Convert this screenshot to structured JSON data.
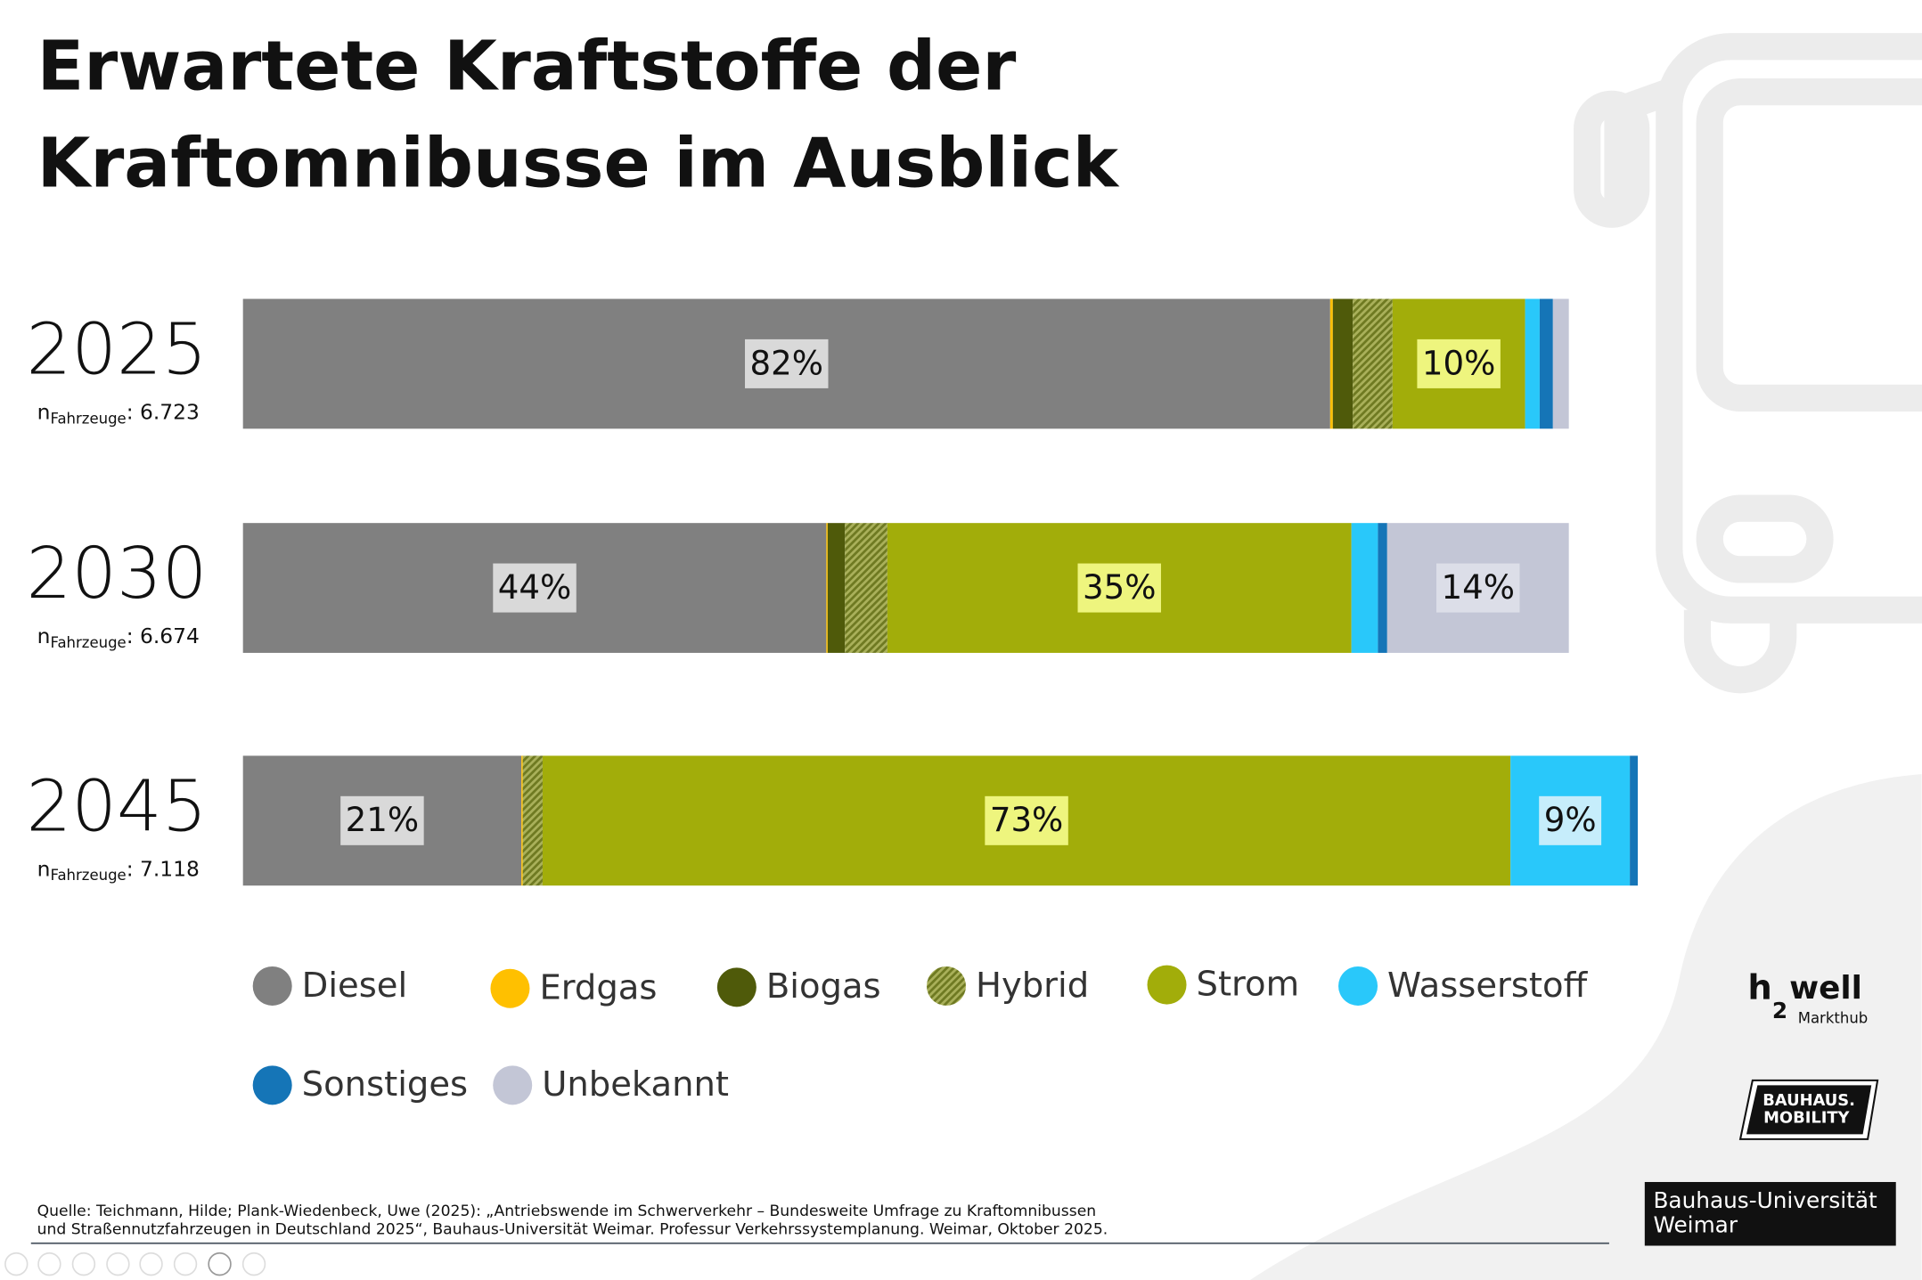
{
  "chart_data": {
    "type": "stacked_hbar",
    "title": [
      "Erwartete Kraftstoffe der",
      "Kraftomnibusse im Ausblick"
    ],
    "categories": [
      "2025",
      "2030",
      "2045"
    ],
    "sample_sizes": [
      {
        "symbol": "n",
        "subscript": "Fahrzeuge",
        "text": ": 6.723"
      },
      {
        "symbol": "n",
        "subscript": "Fahrzeuge",
        "text": ": 6.674"
      },
      {
        "symbol": "n",
        "subscript": "Fahrzeuge",
        "text": ": 7.118"
      }
    ],
    "xlim": [
      0,
      106
    ],
    "series": [
      {
        "name": "Diesel",
        "color": "#808080",
        "values": [
          82,
          44,
          21
        ],
        "value_labels": [
          "82%",
          "44%",
          "21%"
        ],
        "label_bg": "#d9d9d9"
      },
      {
        "name": "Erdgas",
        "color": "#ffc000",
        "values": [
          0.2,
          0.1,
          0.1
        ]
      },
      {
        "name": "Biogas",
        "color": "#4f5a0a",
        "values": [
          1.5,
          1.3,
          0
        ]
      },
      {
        "name": "Hybrid",
        "color": "#8c9640",
        "pattern": "hatch",
        "values": [
          3,
          3.2,
          1.5
        ]
      },
      {
        "name": "Strom",
        "color": "#a2ad0a",
        "values": [
          10,
          35,
          73
        ],
        "value_labels": [
          "10%",
          "35%",
          "73%"
        ],
        "label_bg": "#eef57e"
      },
      {
        "name": "Wasserstoff",
        "color": "#29c8fa",
        "values": [
          1.1,
          2,
          9
        ],
        "value_labels": [
          null,
          null,
          "9%"
        ],
        "label_bg": "#c6edfb"
      },
      {
        "name": "Sonstiges",
        "color": "#1575b7",
        "values": [
          1,
          0.7,
          0.6
        ]
      },
      {
        "name": "Unbekannt",
        "color": "#c3c6d6",
        "values": [
          1.2,
          13.7,
          0
        ],
        "value_labels": [
          null,
          "14%",
          null
        ],
        "label_bg": "#dcdee8"
      }
    ],
    "source": [
      "Quelle: Teichmann, Hilde; Plank-Wiedenbeck, Uwe (2025): „Antriebswende im Schwerverkehr – Bundesweite Umfrage zu Kraftomnibussen",
      "und Straßennutzfahrzeugen in Deutschland 2025“, Bauhaus-Universität Weimar. Professur Verkehrssystemplanung. Weimar, Oktober 2025."
    ],
    "logos": {
      "h2well": [
        "h",
        "2",
        "well",
        "Markthub"
      ],
      "mobility": [
        "BAUHAUS.",
        "MOBILITY"
      ],
      "university": [
        "Bauhaus-Universität",
        "Weimar"
      ]
    }
  }
}
